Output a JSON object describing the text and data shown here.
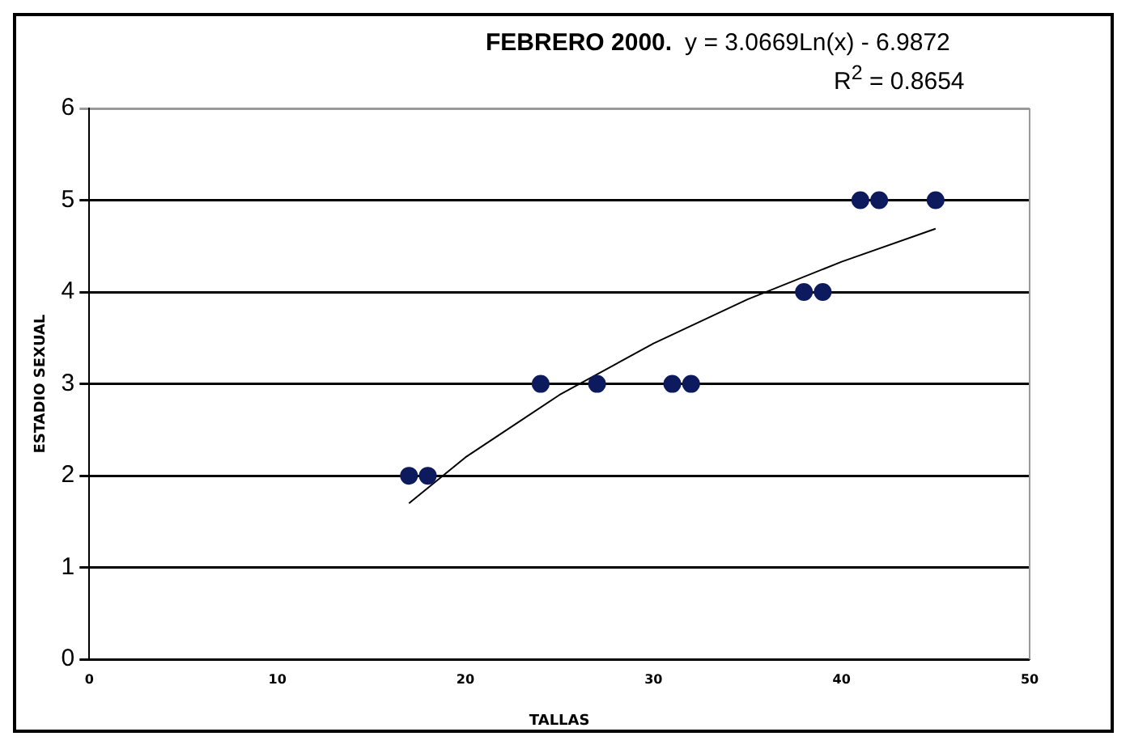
{
  "chart_data": {
    "type": "scatter",
    "title": "FEBRERO 2000.",
    "annotations": [
      "y = 3.0669Ln(x) - 6.9872",
      "R$^{2}$ = 0.8654"
    ],
    "xlabel": "TALLAS",
    "ylabel": "ESTADIO SEXUAL",
    "x": [
      17,
      18,
      24,
      27,
      31,
      32,
      38,
      39,
      41,
      42,
      45
    ],
    "series": [
      {
        "color": "#0d1b5e",
        "values": [
          2,
          2,
          3,
          3,
          3,
          3,
          4,
          4,
          5,
          5,
          5
        ],
        "marker": "circle"
      },
      {
        "type": "line",
        "color": "#000000",
        "x": [
          17,
          20,
          25,
          30,
          35,
          40,
          45
        ],
        "values": [
          1.7,
          2.2,
          2.88,
          3.44,
          3.92,
          4.33,
          4.69
        ],
        "marker": "none"
      }
    ],
    "xlim": [
      0,
      50
    ],
    "xticks": [
      0,
      10,
      20,
      30,
      40,
      50
    ],
    "ylim": [
      0,
      6
    ],
    "yticks": [
      0,
      1,
      2,
      3,
      4,
      5,
      6
    ],
    "grid": "y",
    "legend": false
  }
}
